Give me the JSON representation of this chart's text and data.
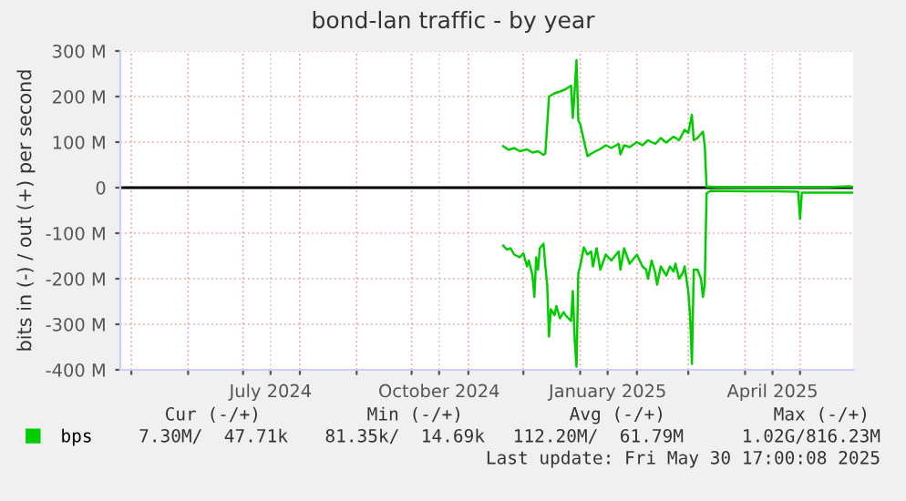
{
  "chart_data": {
    "type": "line",
    "title": "bond-lan traffic - by year",
    "ylabel": "bits in (-) / out (+) per second",
    "xlim": [
      "2024-04-25",
      "2025-05-30"
    ],
    "ylim": [
      -400,
      300
    ],
    "yticks": [
      {
        "value": -400,
        "label": "-400 M"
      },
      {
        "value": -300,
        "label": "-300 M"
      },
      {
        "value": -200,
        "label": "-200 M"
      },
      {
        "value": -100,
        "label": "-100 M"
      },
      0,
      {
        "value": 100,
        "label": "100 M"
      },
      {
        "value": 200,
        "label": "200 M"
      },
      {
        "value": 300,
        "label": "300 M"
      }
    ],
    "xticks": [
      {
        "value": "2024-05-01",
        "label": null
      },
      {
        "value": "2024-06-01",
        "label": null
      },
      {
        "value": "2024-07-01",
        "label": null
      },
      {
        "value": "2024-07-16",
        "label": "July 2024"
      },
      {
        "value": "2024-08-01",
        "label": null
      },
      {
        "value": "2024-09-01",
        "label": null
      },
      {
        "value": "2024-10-01",
        "label": null
      },
      {
        "value": "2024-10-16",
        "label": "October 2024"
      },
      {
        "value": "2024-11-01",
        "label": null
      },
      {
        "value": "2024-12-01",
        "label": null
      },
      {
        "value": "2025-01-01",
        "label": null
      },
      {
        "value": "2025-01-16",
        "label": "January 2025"
      },
      {
        "value": "2025-02-01",
        "label": null
      },
      {
        "value": "2025-03-01",
        "label": null
      },
      {
        "value": "2025-04-01",
        "label": null
      },
      {
        "value": "2025-04-16",
        "label": "April 2025"
      },
      {
        "value": "2025-05-01",
        "label": null
      }
    ],
    "grid": true,
    "legend": "bottom",
    "ref_lines": [
      {
        "axis": "y",
        "value": 0,
        "color": "#000000"
      }
    ],
    "series": [
      {
        "name": "bps",
        "color": "#00cc00",
        "x": [
          "2024-11-20",
          "2024-11-23",
          "2024-11-26",
          "2024-11-29",
          "2024-12-03",
          "2024-12-06",
          "2024-12-09",
          "2024-12-12",
          "2024-12-13",
          "2024-12-15",
          "2024-12-18",
          "2024-12-21",
          "2024-12-24",
          "2024-12-27",
          "2024-12-28",
          "2024-12-29",
          "2024-12-30",
          "2024-12-31",
          "2025-01-01",
          "2025-01-03",
          "2025-01-05",
          "2025-01-08",
          "2025-01-12",
          "2025-01-15",
          "2025-01-18",
          "2025-01-22",
          "2025-01-23",
          "2025-01-25",
          "2025-01-28",
          "2025-02-01",
          "2025-02-04",
          "2025-02-07",
          "2025-02-11",
          "2025-02-14",
          "2025-02-17",
          "2025-02-21",
          "2025-02-24",
          "2025-02-27",
          "2025-03-01",
          "2025-03-03",
          "2025-03-04",
          "2025-03-06",
          "2025-03-09",
          "2025-03-10",
          "2025-03-11",
          "2025-03-13",
          "2025-03-19",
          "2025-04-02",
          "2025-04-18",
          "2025-05-15",
          "2025-05-28",
          "2025-05-30"
        ],
        "values": [
          91,
          83,
          87,
          80,
          84,
          77,
          80,
          72,
          75,
          200,
          207,
          211,
          216,
          224,
          153,
          213,
          280,
          147,
          140,
          104,
          69,
          77,
          85,
          93,
          87,
          96,
          73,
          93,
          89,
          100,
          93,
          104,
          96,
          109,
          99,
          112,
          104,
          127,
          120,
          160,
          104,
          109,
          123,
          93,
          2,
          2,
          1,
          1,
          1,
          1,
          3,
          1
        ]
      },
      {
        "color": "#00cc00",
        "x": [
          "2024-11-20",
          "2024-11-22",
          "2024-11-24",
          "2024-11-26",
          "2024-11-29",
          "2024-12-01",
          "2024-12-03",
          "2024-12-04",
          "2024-12-06",
          "2024-12-07",
          "2024-12-08",
          "2024-12-09",
          "2024-12-10",
          "2024-12-12",
          "2024-12-13",
          "2024-12-14",
          "2024-12-15",
          "2024-12-16",
          "2024-12-18",
          "2024-12-19",
          "2024-12-21",
          "2024-12-23",
          "2024-12-24",
          "2024-12-27",
          "2024-12-28",
          "2024-12-29",
          "2024-12-30",
          "2024-12-31",
          "2025-01-01",
          "2025-01-03",
          "2025-01-05",
          "2025-01-07",
          "2025-01-08",
          "2025-01-10",
          "2025-01-12",
          "2025-01-15",
          "2025-01-18",
          "2025-01-22",
          "2025-01-23",
          "2025-01-25",
          "2025-01-28",
          "2025-02-01",
          "2025-02-04",
          "2025-02-06",
          "2025-02-07",
          "2025-02-09",
          "2025-02-11",
          "2025-02-12",
          "2025-02-14",
          "2025-02-17",
          "2025-02-19",
          "2025-02-21",
          "2025-02-22",
          "2025-02-24",
          "2025-02-26",
          "2025-02-27",
          "2025-03-01",
          "2025-03-02",
          "2025-03-03",
          "2025-03-04",
          "2025-03-06",
          "2025-03-08",
          "2025-03-09",
          "2025-03-10",
          "2025-03-11",
          "2025-03-13",
          "2025-04-02",
          "2025-04-18",
          "2025-04-30",
          "2025-05-01",
          "2025-05-02",
          "2025-05-15",
          "2025-05-30"
        ],
        "values": [
          -127,
          -136,
          -133,
          -147,
          -153,
          -144,
          -173,
          -160,
          -193,
          -240,
          -153,
          -180,
          -133,
          -123,
          -173,
          -213,
          -327,
          -267,
          -280,
          -260,
          -287,
          -273,
          -280,
          -293,
          -227,
          -333,
          -393,
          -187,
          -173,
          -131,
          -147,
          -140,
          -173,
          -133,
          -180,
          -147,
          -160,
          -140,
          -180,
          -133,
          -167,
          -147,
          -173,
          -180,
          -200,
          -160,
          -187,
          -213,
          -173,
          -193,
          -173,
          -184,
          -167,
          -200,
          -187,
          -173,
          -227,
          -280,
          -387,
          -180,
          -180,
          -200,
          -240,
          -213,
          -13,
          -7,
          -8,
          -8,
          -9,
          -69,
          -11,
          -11,
          -11
        ]
      }
    ],
    "annotations": [
      "Cur (-/+)",
      "Min (-/+)",
      "Avg (-/+)",
      "Max (-/+)",
      "7.30M/  47.71k",
      "81.35k/  14.69k",
      "112.20M/  61.79M",
      "1.02G/816.23M",
      "Last update: Fri May 30 17:00:08 2025"
    ]
  }
}
